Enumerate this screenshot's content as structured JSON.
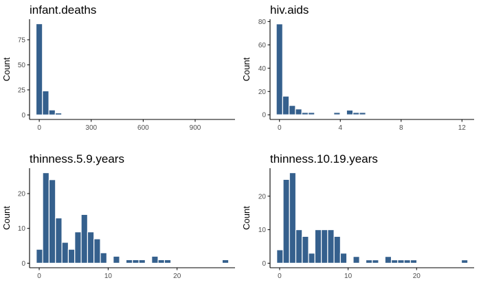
{
  "colors": {
    "bar": "#35608d",
    "bar_stroke": "#ffffff",
    "axis": "#000000",
    "tick_label": "#4d4d4d",
    "text": "#000000",
    "background": "#ffffff"
  },
  "chart_data": [
    {
      "type": "bar",
      "title": "infant.deaths",
      "xlabel": "",
      "ylabel": "Count",
      "bin_width": 37,
      "x": [
        0,
        37,
        74,
        111,
        148,
        185,
        222,
        259,
        296,
        333,
        370,
        407,
        444,
        481,
        518,
        555,
        592,
        629,
        666,
        703,
        740,
        777,
        814,
        851,
        888,
        925,
        962,
        999,
        1036,
        1073
      ],
      "values": [
        91,
        24,
        5,
        2,
        0,
        0,
        0,
        0,
        0,
        0,
        0,
        0,
        0,
        0,
        0,
        0,
        0,
        0,
        0,
        0,
        0,
        0,
        0,
        0,
        0,
        0,
        0,
        0,
        0,
        0
      ],
      "xlim": [
        -56,
        1130
      ],
      "ylim": [
        -4.5,
        95.5
      ],
      "xticks": [
        0,
        300,
        600,
        900
      ],
      "yticks": [
        0,
        25,
        50,
        75
      ],
      "grid": false
    },
    {
      "type": "bar",
      "title": "hiv.aids",
      "xlabel": "",
      "ylabel": "Count",
      "bin_width": 0.42,
      "x": [
        0,
        0.42,
        0.84,
        1.26,
        1.68,
        2.1,
        2.52,
        2.94,
        3.36,
        3.78,
        4.2,
        4.62,
        5.04,
        5.46,
        5.88,
        6.3,
        6.72,
        7.14,
        7.56,
        7.98,
        8.4,
        8.82,
        9.24,
        9.66,
        10.08,
        10.5,
        10.92,
        11.34,
        11.76,
        12.18
      ],
      "values": [
        78,
        16,
        8,
        5,
        2,
        2,
        0,
        0,
        0,
        2,
        0,
        4,
        2,
        2,
        0,
        0,
        0,
        0,
        0,
        0,
        0,
        0,
        0,
        0,
        0,
        0,
        0,
        0,
        0,
        0
      ],
      "xlim": [
        -0.62,
        12.8
      ],
      "ylim": [
        -4,
        82
      ],
      "xticks": [
        0,
        4,
        8,
        12
      ],
      "yticks": [
        0,
        20,
        40,
        60,
        80
      ],
      "grid": false
    },
    {
      "type": "bar",
      "title": "thinness.5.9.years",
      "xlabel": "",
      "ylabel": "Count",
      "bin_width": 0.93,
      "x": [
        0.04,
        0.97,
        1.9,
        2.83,
        3.76,
        4.69,
        5.62,
        6.55,
        7.48,
        8.41,
        9.34,
        10.27,
        11.2,
        12.13,
        13.06,
        13.99,
        14.92,
        15.85,
        16.78,
        17.71,
        18.64,
        19.57,
        20.5,
        21.43,
        22.36,
        23.29,
        24.22,
        25.15,
        26.08,
        27.01
      ],
      "values": [
        4,
        26,
        24,
        13,
        6,
        4,
        9,
        14,
        9,
        7,
        3,
        0,
        2,
        0,
        1,
        1,
        1,
        0,
        2,
        1,
        1,
        0,
        0,
        0,
        0,
        0,
        0,
        0,
        0,
        1
      ],
      "xlim": [
        -1.4,
        28.4
      ],
      "ylim": [
        -1.3,
        27.3
      ],
      "xticks": [
        0,
        10,
        20
      ],
      "yticks": [
        0,
        10,
        20
      ],
      "grid": false
    },
    {
      "type": "bar",
      "title": "thinness.10.19.years",
      "xlabel": "",
      "ylabel": "Count",
      "bin_width": 0.93,
      "x": [
        0.04,
        0.97,
        1.9,
        2.83,
        3.76,
        4.69,
        5.62,
        6.55,
        7.48,
        8.41,
        9.34,
        10.27,
        11.2,
        12.13,
        13.06,
        13.99,
        14.92,
        15.85,
        16.78,
        17.71,
        18.64,
        19.57,
        20.5,
        21.43,
        22.36,
        23.29,
        24.22,
        25.15,
        26.08,
        27.01
      ],
      "values": [
        4,
        25,
        27,
        10,
        8,
        3,
        10,
        10,
        10,
        8,
        3,
        0,
        2,
        0,
        1,
        1,
        0,
        2,
        1,
        1,
        1,
        1,
        0,
        0,
        0,
        0,
        0,
        0,
        0,
        1
      ],
      "xlim": [
        -1.4,
        28.4
      ],
      "ylim": [
        -1.35,
        28.35
      ],
      "xticks": [
        0,
        10,
        20
      ],
      "yticks": [
        0,
        10,
        20
      ],
      "grid": false
    }
  ]
}
